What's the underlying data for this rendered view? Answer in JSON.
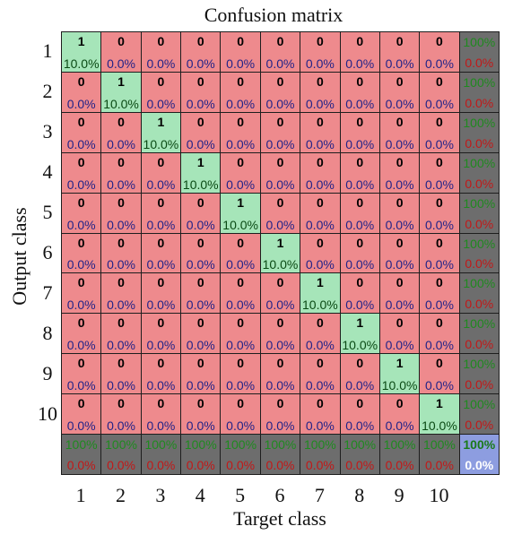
{
  "chart_data": {
    "type": "heatmap",
    "title": "Confusion matrix",
    "xlabel": "Target class",
    "ylabel": "Output class",
    "classes": [
      "1",
      "2",
      "3",
      "4",
      "5",
      "6",
      "7",
      "8",
      "9",
      "10"
    ],
    "counts": [
      [
        1,
        0,
        0,
        0,
        0,
        0,
        0,
        0,
        0,
        0
      ],
      [
        0,
        1,
        0,
        0,
        0,
        0,
        0,
        0,
        0,
        0
      ],
      [
        0,
        0,
        1,
        0,
        0,
        0,
        0,
        0,
        0,
        0
      ],
      [
        0,
        0,
        0,
        1,
        0,
        0,
        0,
        0,
        0,
        0
      ],
      [
        0,
        0,
        0,
        0,
        1,
        0,
        0,
        0,
        0,
        0
      ],
      [
        0,
        0,
        0,
        0,
        0,
        1,
        0,
        0,
        0,
        0
      ],
      [
        0,
        0,
        0,
        0,
        0,
        0,
        1,
        0,
        0,
        0
      ],
      [
        0,
        0,
        0,
        0,
        0,
        0,
        0,
        1,
        0,
        0
      ],
      [
        0,
        0,
        0,
        0,
        0,
        0,
        0,
        0,
        1,
        0
      ],
      [
        0,
        0,
        0,
        0,
        0,
        0,
        0,
        0,
        0,
        1
      ]
    ],
    "percentages": [
      [
        "10.0%",
        "0.0%",
        "0.0%",
        "0.0%",
        "0.0%",
        "0.0%",
        "0.0%",
        "0.0%",
        "0.0%",
        "0.0%"
      ],
      [
        "0.0%",
        "10.0%",
        "0.0%",
        "0.0%",
        "0.0%",
        "0.0%",
        "0.0%",
        "0.0%",
        "0.0%",
        "0.0%"
      ],
      [
        "0.0%",
        "0.0%",
        "10.0%",
        "0.0%",
        "0.0%",
        "0.0%",
        "0.0%",
        "0.0%",
        "0.0%",
        "0.0%"
      ],
      [
        "0.0%",
        "0.0%",
        "0.0%",
        "10.0%",
        "0.0%",
        "0.0%",
        "0.0%",
        "0.0%",
        "0.0%",
        "0.0%"
      ],
      [
        "0.0%",
        "0.0%",
        "0.0%",
        "0.0%",
        "10.0%",
        "0.0%",
        "0.0%",
        "0.0%",
        "0.0%",
        "0.0%"
      ],
      [
        "0.0%",
        "0.0%",
        "0.0%",
        "0.0%",
        "0.0%",
        "10.0%",
        "0.0%",
        "0.0%",
        "0.0%",
        "0.0%"
      ],
      [
        "0.0%",
        "0.0%",
        "0.0%",
        "0.0%",
        "0.0%",
        "0.0%",
        "10.0%",
        "0.0%",
        "0.0%",
        "0.0%"
      ],
      [
        "0.0%",
        "0.0%",
        "0.0%",
        "0.0%",
        "0.0%",
        "0.0%",
        "0.0%",
        "10.0%",
        "0.0%",
        "0.0%"
      ],
      [
        "0.0%",
        "0.0%",
        "0.0%",
        "0.0%",
        "0.0%",
        "0.0%",
        "0.0%",
        "0.0%",
        "10.0%",
        "0.0%"
      ],
      [
        "0.0%",
        "0.0%",
        "0.0%",
        "0.0%",
        "0.0%",
        "0.0%",
        "0.0%",
        "0.0%",
        "0.0%",
        "10.0%"
      ]
    ],
    "row_summary": [
      [
        "100%",
        "0.0%"
      ],
      [
        "100%",
        "0.0%"
      ],
      [
        "100%",
        "0.0%"
      ],
      [
        "100%",
        "0.0%"
      ],
      [
        "100%",
        "0.0%"
      ],
      [
        "100%",
        "0.0%"
      ],
      [
        "100%",
        "0.0%"
      ],
      [
        "100%",
        "0.0%"
      ],
      [
        "100%",
        "0.0%"
      ],
      [
        "100%",
        "0.0%"
      ]
    ],
    "col_summary": [
      [
        "100%",
        "0.0%"
      ],
      [
        "100%",
        "0.0%"
      ],
      [
        "100%",
        "0.0%"
      ],
      [
        "100%",
        "0.0%"
      ],
      [
        "100%",
        "0.0%"
      ],
      [
        "100%",
        "0.0%"
      ],
      [
        "100%",
        "0.0%"
      ],
      [
        "100%",
        "0.0%"
      ],
      [
        "100%",
        "0.0%"
      ],
      [
        "100%",
        "0.0%"
      ]
    ],
    "overall": [
      "100%",
      "0.0%"
    ],
    "colors": {
      "correct": "#a6e5b9",
      "incorrect": "#ee8a8d",
      "summary": "#6d6d6d",
      "overall": "#8d9de0",
      "summary_top_text": "#1f8a1f",
      "summary_bottom_text": "#c21818",
      "overall_top_text": "#1a7a1a",
      "overall_bottom_text": "#ffffff",
      "pct_correct_text": "#0a4a14",
      "pct_incorrect_text": "#222288"
    }
  }
}
